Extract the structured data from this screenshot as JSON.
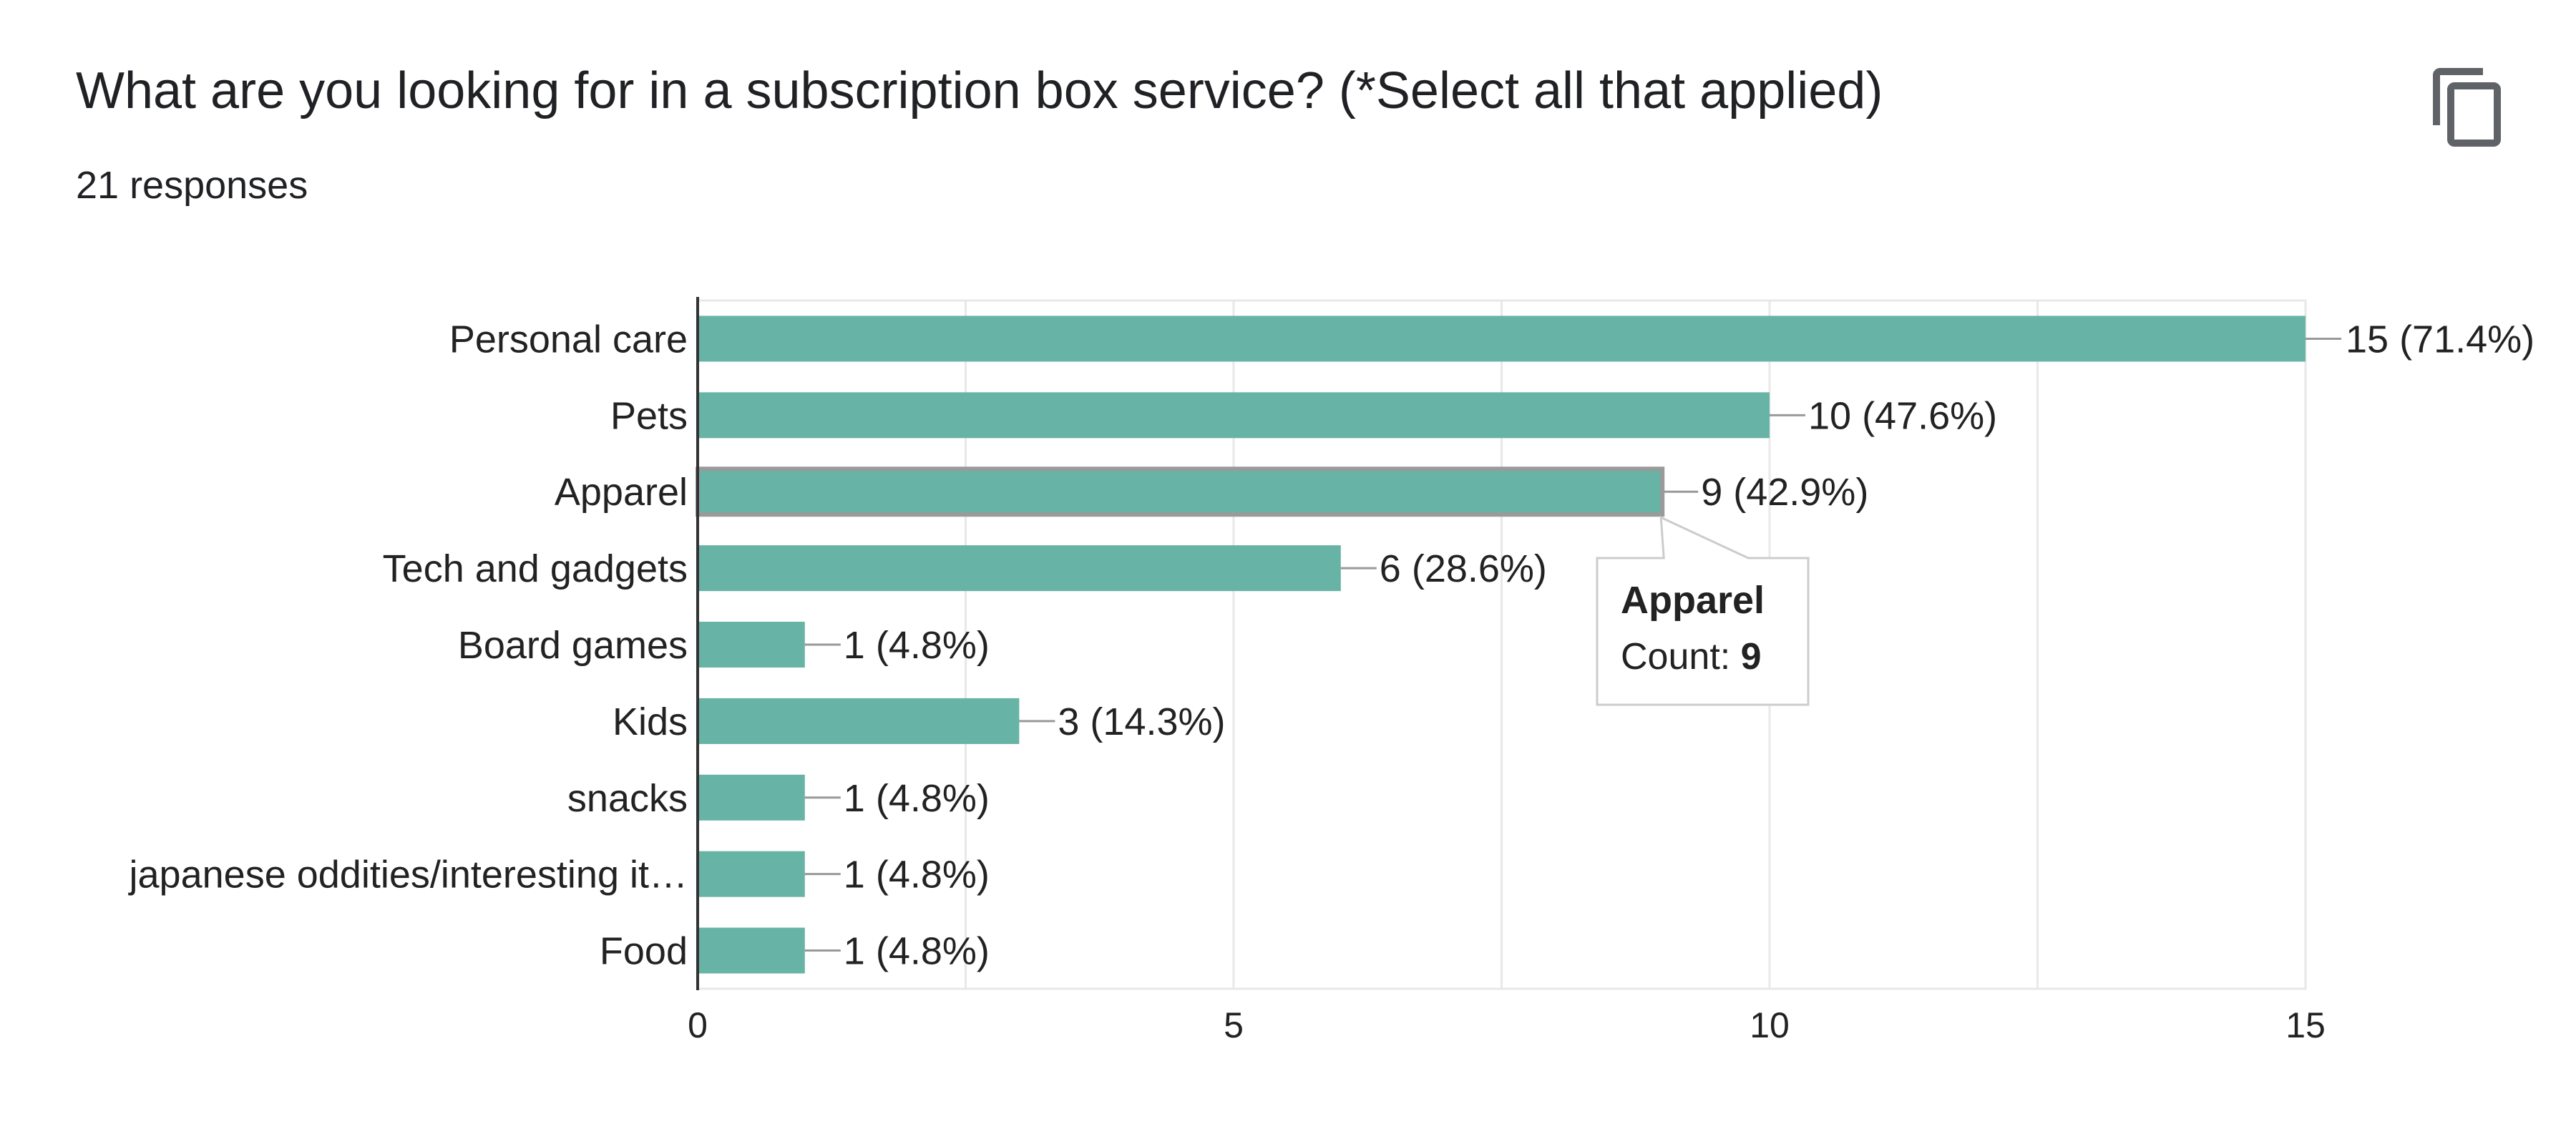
{
  "header": {
    "title": "What are you looking for in a subscription box service? (*Select all that applied)",
    "responses": "21 responses",
    "copy_icon": "copy-icon"
  },
  "colors": {
    "bar": "#67b3a5",
    "grid": "#e8e8e8",
    "text": "#222222",
    "leader": "#999999"
  },
  "chart_data": {
    "type": "bar",
    "orientation": "horizontal",
    "categories": [
      "Personal care",
      "Pets",
      "Apparel",
      "Tech and gadgets",
      "Board games",
      "Kids",
      "snacks",
      "japanese oddities/interesting it…",
      "Food"
    ],
    "values": [
      15,
      10,
      9,
      6,
      1,
      3,
      1,
      1,
      1
    ],
    "value_labels": [
      "15 (71.4%)",
      "10 (47.6%)",
      "9 (42.9%)",
      "6 (28.6%)",
      "1 (4.8%)",
      "3 (14.3%)",
      "1 (4.8%)",
      "1 (4.8%)",
      "1 (4.8%)"
    ],
    "xlim": [
      0,
      15
    ],
    "xticks": [
      0,
      5,
      10,
      15
    ],
    "grid": true,
    "highlighted": "Apparel",
    "tooltip": {
      "title": "Apparel",
      "label": "Count:",
      "value": "9"
    }
  }
}
